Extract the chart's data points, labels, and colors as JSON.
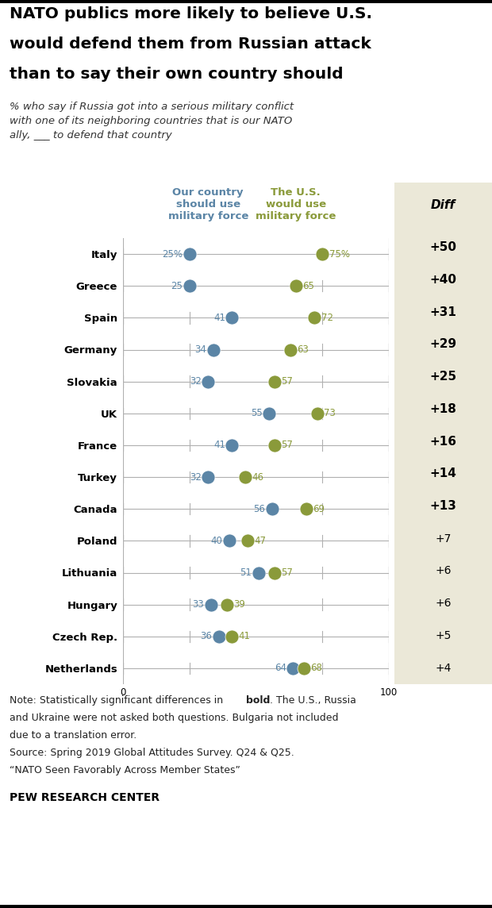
{
  "title_line1": "NATO publics more likely to believe U.S.",
  "title_line2": "would defend them from Russian attack",
  "title_line3": "than to say their own country should",
  "subtitle": "% who say if Russia got into a serious military conflict\nwith one of its neighboring countries that is our NATO\nally, ___ to defend that country",
  "countries": [
    "Italy",
    "Greece",
    "Spain",
    "Germany",
    "Slovakia",
    "UK",
    "France",
    "Turkey",
    "Canada",
    "Poland",
    "Lithuania",
    "Hungary",
    "Czech Rep.",
    "Netherlands"
  ],
  "own_country": [
    25,
    25,
    41,
    34,
    32,
    55,
    41,
    32,
    56,
    40,
    51,
    33,
    36,
    64
  ],
  "us_would": [
    75,
    65,
    72,
    63,
    57,
    73,
    57,
    46,
    69,
    47,
    57,
    39,
    41,
    68
  ],
  "diff": [
    "+50",
    "+40",
    "+31",
    "+29",
    "+25",
    "+18",
    "+16",
    "+14",
    "+13",
    "+7",
    "+6",
    "+6",
    "+5",
    "+4"
  ],
  "diff_bold": [
    true,
    true,
    true,
    true,
    true,
    true,
    true,
    true,
    true,
    false,
    false,
    false,
    false,
    false
  ],
  "own_label": "Our country\nshould use\nmilitary force",
  "us_label": "The U.S.\nwould use\nmilitary force",
  "diff_label": "Diff",
  "own_color": "#5b85a6",
  "us_color": "#8a9a3a",
  "line_color": "#b0b0b0",
  "diff_bg": "#ebe8d8",
  "note_line1_normal": "Note: Statistically significant differences in ",
  "note_line1_bold": "bold",
  "note_line1_end": ". The U.S., Russia",
  "note_rest": "and Ukraine were not asked both questions. Bulgaria not included\ndue to a translation error.\nSource: Spring 2019 Global Attitudes Survey. Q24 & Q25.\n“NATO Seen Favorably Across Member States”",
  "source_label": "PEW RESEARCH CENTER",
  "xlim": [
    0,
    100
  ]
}
